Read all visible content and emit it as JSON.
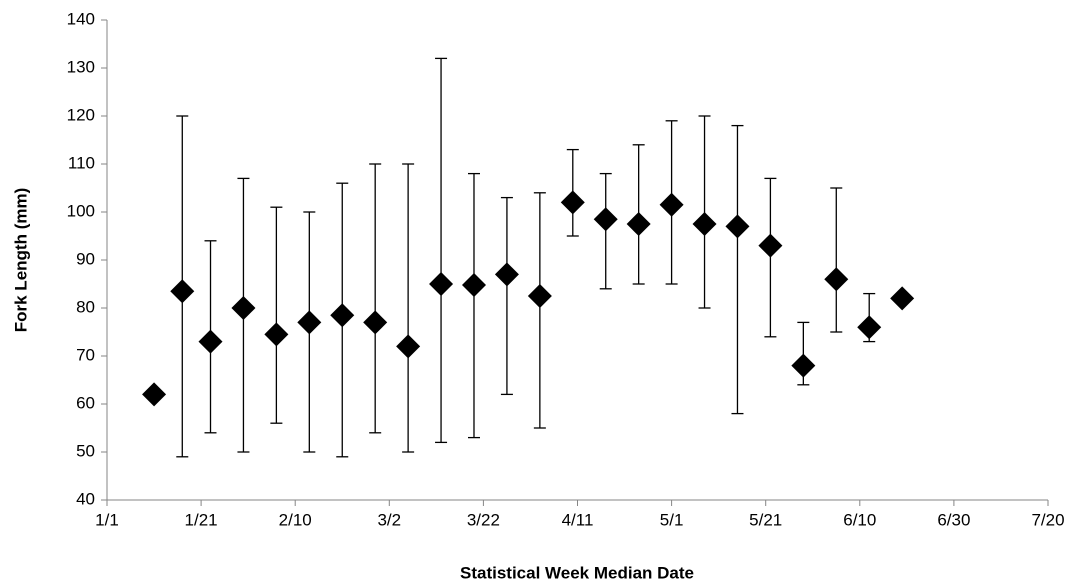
{
  "chart_data": {
    "type": "scatter",
    "xlabel": "Statistical Week Median Date",
    "ylabel": "Fork Length (mm)",
    "x": [
      10,
      16,
      22,
      29,
      36,
      43,
      50,
      57,
      64,
      71,
      78,
      85,
      92,
      99,
      106,
      113,
      120,
      127,
      134,
      141,
      148,
      155,
      162,
      169
    ],
    "series": [
      {
        "color": "#000000",
        "values": [
          62,
          83.5,
          73,
          80,
          74.5,
          77,
          78.5,
          77,
          72,
          85,
          84.8,
          87,
          82.5,
          102,
          98.5,
          97.5,
          101.5,
          97.5,
          97,
          93,
          68,
          86,
          76,
          82
        ],
        "low": [
          null,
          49,
          54,
          50,
          56,
          50,
          49,
          54,
          50,
          52,
          53,
          62,
          55,
          95,
          84,
          85,
          85,
          80,
          58,
          74,
          64,
          75,
          73,
          null
        ],
        "high": [
          null,
          120,
          94,
          107,
          101,
          100,
          106,
          110,
          110,
          132,
          108,
          103,
          104,
          113,
          108,
          114,
          119,
          120,
          118,
          107,
          77,
          105,
          83,
          null
        ]
      }
    ],
    "xlim": [
      0,
      200
    ],
    "xticks": [
      {
        "value": 0,
        "label": "1/1"
      },
      {
        "value": 20,
        "label": "1/21"
      },
      {
        "value": 40,
        "label": "2/10"
      },
      {
        "value": 60,
        "label": "3/2"
      },
      {
        "value": 80,
        "label": "3/22"
      },
      {
        "value": 100,
        "label": "4/11"
      },
      {
        "value": 120,
        "label": "5/1"
      },
      {
        "value": 140,
        "label": "5/21"
      },
      {
        "value": 160,
        "label": "6/10"
      },
      {
        "value": 180,
        "label": "6/30"
      },
      {
        "value": 200,
        "label": "7/20"
      }
    ],
    "ylim": [
      40,
      140
    ],
    "yticks": [
      40,
      50,
      60,
      70,
      80,
      90,
      100,
      110,
      120,
      130,
      140
    ],
    "grid": false
  }
}
